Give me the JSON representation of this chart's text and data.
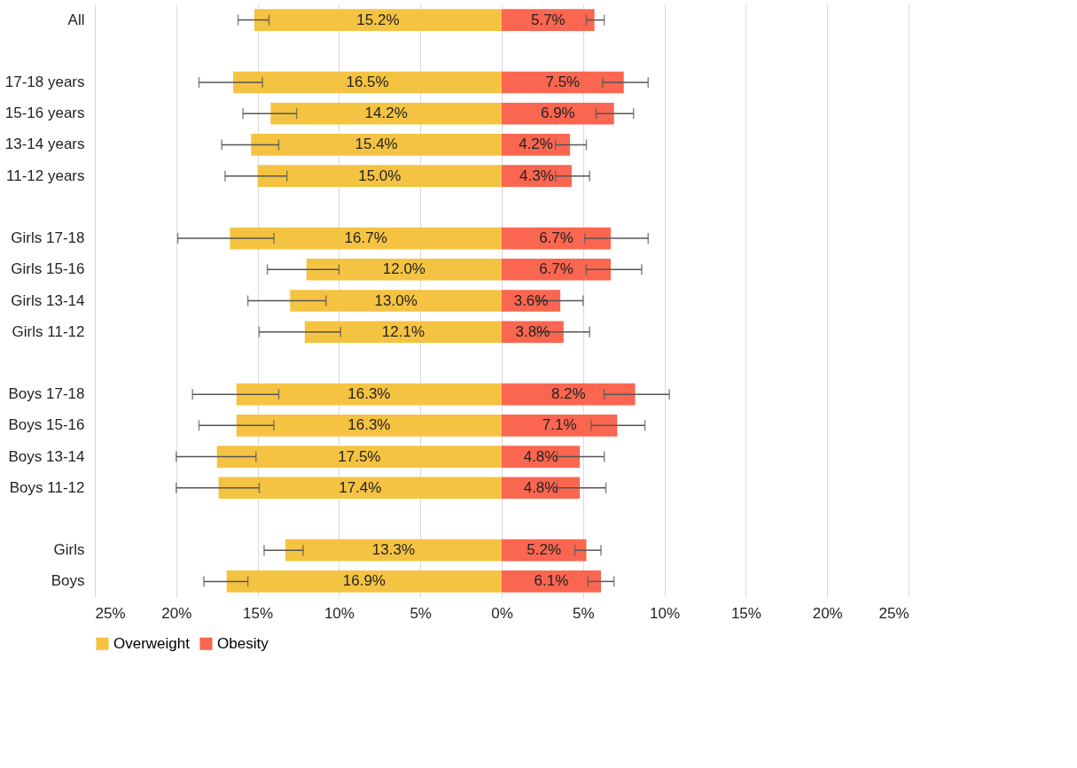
{
  "chart_data": {
    "type": "bar",
    "orientation": "horizontal",
    "stacked": true,
    "categories": [
      "All",
      null,
      "17-18 years",
      "15-16 years",
      "13-14 years",
      "11-12 years",
      null,
      "Girls 17-18",
      "Girls 15-16",
      "Girls 13-14",
      "Girls 11-12",
      null,
      "Boys 17-18",
      "Boys 15-16",
      "Boys 13-14",
      "Boys 11-12",
      null,
      "Girls",
      "Boys"
    ],
    "series": [
      {
        "name": "Overweight",
        "color": "#f5c342",
        "values": [
          15.2,
          null,
          16.5,
          14.2,
          15.4,
          15.0,
          null,
          16.7,
          12.0,
          13.0,
          12.1,
          null,
          16.3,
          16.3,
          17.5,
          17.4,
          null,
          13.3,
          16.9
        ],
        "base": [
          -15.2,
          null,
          -16.5,
          -14.2,
          -15.4,
          -15.0,
          null,
          -16.7,
          -12.0,
          -13.0,
          -12.1,
          null,
          -16.3,
          -16.3,
          -17.5,
          -17.4,
          null,
          -13.3,
          -16.9
        ],
        "value_labels": [
          "15.2%",
          null,
          "16.5%",
          "14.2%",
          "15.4%",
          "15.0%",
          null,
          "16.7%",
          "12.0%",
          "13.0%",
          "12.1%",
          null,
          "16.3%",
          "16.3%",
          "17.5%",
          "17.4%",
          null,
          "13.3%",
          "16.9%"
        ],
        "errors": [
          [
            -16.2,
            -14.3
          ],
          null,
          [
            -18.6,
            -14.7
          ],
          [
            -15.9,
            -12.6
          ],
          [
            -17.2,
            -13.7
          ],
          [
            -17.0,
            -13.2
          ],
          null,
          [
            -19.9,
            -14.0
          ],
          [
            -14.4,
            -10.0
          ],
          [
            -15.6,
            -10.8
          ],
          [
            -14.9,
            -9.9
          ],
          null,
          [
            -19.0,
            -13.7
          ],
          [
            -18.6,
            -14.0
          ],
          [
            -20.0,
            -15.1
          ],
          [
            -20.0,
            -14.9
          ],
          null,
          [
            -14.6,
            -12.2
          ],
          [
            -18.3,
            -15.6
          ]
        ]
      },
      {
        "name": "Obesity",
        "color": "#fa6650",
        "values": [
          5.7,
          null,
          7.5,
          6.9,
          4.2,
          4.3,
          null,
          6.7,
          6.7,
          3.6,
          3.8,
          null,
          8.2,
          7.1,
          4.8,
          4.8,
          null,
          5.2,
          6.1
        ],
        "value_labels": [
          "5.7%",
          null,
          "7.5%",
          "6.9%",
          "4.2%",
          "4.3%",
          null,
          "6.7%",
          "6.7%",
          "3.6%",
          "3.8%",
          null,
          "8.2%",
          "7.1%",
          "4.8%",
          "4.8%",
          null,
          "5.2%",
          "6.1%"
        ],
        "errors": [
          [
            5.2,
            6.3
          ],
          null,
          [
            6.2,
            9.0
          ],
          [
            5.8,
            8.1
          ],
          [
            3.3,
            5.2
          ],
          [
            3.3,
            5.4
          ],
          null,
          [
            5.1,
            9.0
          ],
          [
            5.2,
            8.6
          ],
          [
            2.2,
            5.0
          ],
          [
            2.2,
            5.4
          ],
          null,
          [
            6.3,
            10.3
          ],
          [
            5.5,
            8.8
          ],
          [
            3.4,
            6.3
          ],
          [
            3.4,
            6.4
          ],
          null,
          [
            4.5,
            6.1
          ],
          [
            5.3,
            6.9
          ]
        ]
      }
    ],
    "xlim": [
      -25,
      25
    ],
    "xticks": [
      {
        "value": -25,
        "label": "25%"
      },
      {
        "value": -20,
        "label": "20%"
      },
      {
        "value": -15,
        "label": "15%"
      },
      {
        "value": -10,
        "label": "10%"
      },
      {
        "value": -5,
        "label": "5%"
      },
      {
        "value": 0,
        "label": "0%"
      },
      {
        "value": 5,
        "label": "5%"
      },
      {
        "value": 10,
        "label": "10%"
      },
      {
        "value": 15,
        "label": "15%"
      },
      {
        "value": 20,
        "label": "20%"
      },
      {
        "value": 25,
        "label": "25%"
      }
    ],
    "grid": "x",
    "legend": "bottom"
  }
}
